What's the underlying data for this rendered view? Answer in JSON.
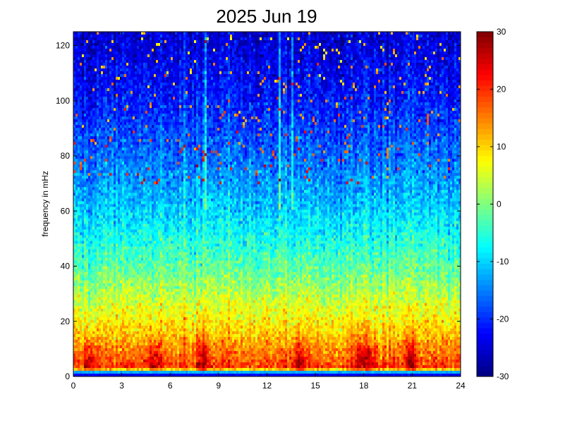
{
  "chart_data": {
    "type": "heatmap",
    "title": "2025 Jun 19",
    "xlabel": "",
    "ylabel": "frequency in mHz",
    "xlim": [
      0,
      24
    ],
    "ylim": [
      0,
      125
    ],
    "x_ticks": [
      "0",
      "3",
      "6",
      "9",
      "12",
      "15",
      "18",
      "21",
      "24"
    ],
    "y_ticks": [
      "0",
      "20",
      "40",
      "60",
      "80",
      "100",
      "120"
    ],
    "colorbar": {
      "range": [
        -30,
        30
      ],
      "ticks": [
        "30",
        "20",
        "10",
        "0",
        "-10",
        "-20",
        "-30"
      ],
      "colormap": "jet"
    },
    "grid": false,
    "profile": {
      "frequency_mhz": [
        0,
        1,
        3,
        8,
        15,
        25,
        40,
        60,
        80,
        100,
        125
      ],
      "typical_value": [
        -22,
        -24,
        20,
        16,
        11,
        6,
        -2,
        -10,
        -16,
        -21,
        -25
      ]
    },
    "hotspots_hour": [
      1.0,
      5.0,
      8.0,
      14.0,
      17.7,
      18.4,
      20.9
    ],
    "vertical_streaks_hour": [
      8.2,
      12.8,
      13.6
    ]
  }
}
